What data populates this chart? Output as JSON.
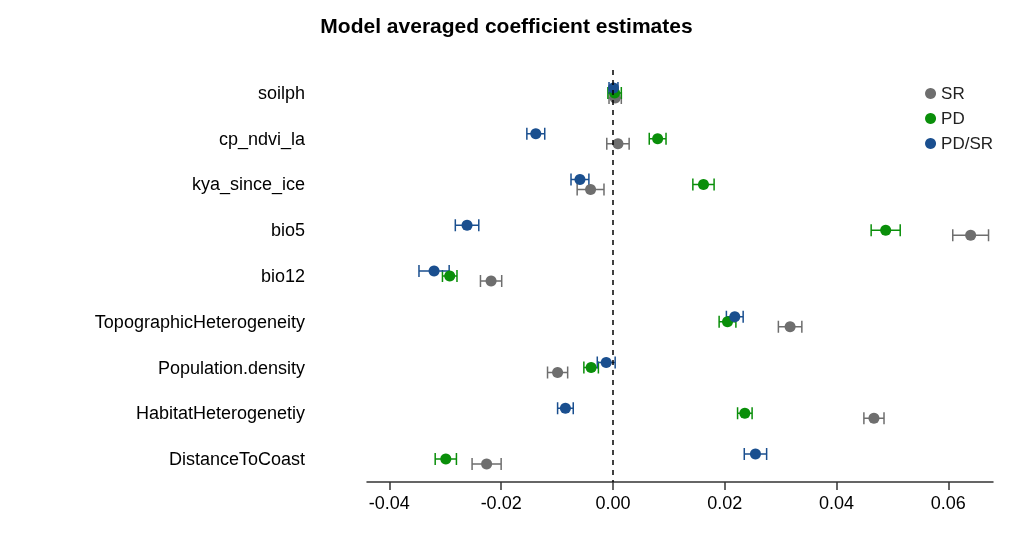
{
  "chart_data": {
    "type": "scatter",
    "title": "Model averaged coefficient estimates",
    "categories": [
      "soilph",
      "cp_ndvi_la",
      "kya_since_ice",
      "bio5",
      "bio12",
      "TopographicHeterogeneity",
      "Population.density",
      "HabitatHeterogenetiy",
      "DistanceToCoast"
    ],
    "orientation": "horizontal",
    "series": [
      {
        "name": "SR",
        "color": "#6e6e6e",
        "values": [
          0.0004,
          0.0009,
          -0.004,
          0.064,
          -0.0218,
          0.0317,
          -0.0099,
          0.0467,
          -0.0226
        ],
        "errors": [
          0.0011,
          0.002,
          0.0024,
          0.0032,
          0.0019,
          0.0021,
          0.0018,
          0.0018,
          0.0026
        ]
      },
      {
        "name": "PD",
        "color": "#0a8f0a",
        "values": [
          0.0003,
          0.008,
          0.0162,
          0.0488,
          -0.0292,
          0.0205,
          -0.0039,
          0.0236,
          -0.0299
        ],
        "errors": [
          0.0012,
          0.0015,
          0.0019,
          0.0026,
          0.0013,
          0.0015,
          0.0013,
          0.0013,
          0.0019
        ]
      },
      {
        "name": "PD/SR",
        "color": "#1a4f8f",
        "values": [
          0.0001,
          -0.0138,
          -0.0059,
          -0.0261,
          -0.032,
          0.0218,
          -0.0012,
          -0.0085,
          0.0255
        ],
        "errors": [
          0.0008,
          0.0016,
          0.0016,
          0.0021,
          0.0027,
          0.0015,
          0.0016,
          0.0014,
          0.002
        ]
      }
    ],
    "xlim": [
      -0.044,
      0.068
    ],
    "xticks": [
      {
        "value": -0.04,
        "label": "-0.04"
      },
      {
        "value": -0.02,
        "label": "-0.02"
      },
      {
        "value": 0,
        "label": "0.00"
      },
      {
        "value": 0.02,
        "label": "0.02"
      },
      {
        "value": 0.04,
        "label": "0.04"
      },
      {
        "value": 0.06,
        "label": "0.06"
      }
    ],
    "ref_lines": [
      {
        "axis": "x",
        "value": 0,
        "color": "#000000",
        "line_style": "dashed"
      }
    ],
    "legend": "top right",
    "marker": "circle",
    "grid": false
  }
}
